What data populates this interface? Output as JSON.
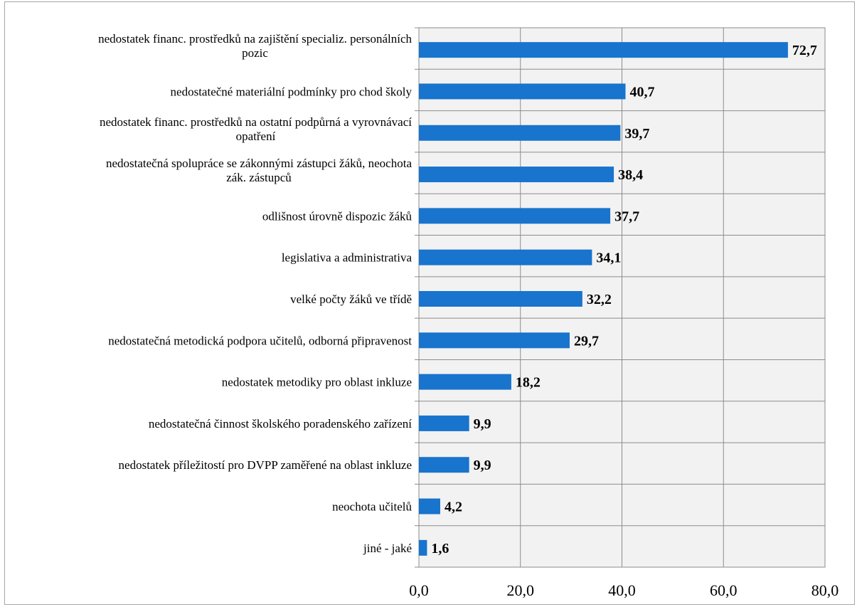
{
  "chart_data": {
    "type": "bar",
    "orientation": "horizontal",
    "categories": [
      "nedostatek financ. prostředků na zajištění specializ. personálních pozic",
      "nedostatečné materiální podmínky pro chod školy",
      "nedostatek financ. prostředků na ostatní podpůrná a vyrovnávací opatření",
      "nedostatečná spolupráce se zákonnými zástupci žáků, neochota zák. zástupců",
      "odlišnost úrovně dispozic žáků",
      "legislativa a administrativa",
      "velké počty žáků ve třídě",
      "nedostatečná metodická podpora učitelů, odborná připravenost",
      "nedostatek metodiky pro oblast inkluze",
      "nedostatečná činnost školského poradenského zařízení",
      "nedostatek příležitostí pro DVPP zaměřené na oblast inkluze",
      "neochota učitelů",
      "jiné - jaké"
    ],
    "category_lines": [
      [
        "nedostatek financ. prostředků na zajištění specializ. personálních",
        "pozic"
      ],
      [
        "nedostatečné materiální podmínky pro chod školy"
      ],
      [
        "nedostatek financ. prostředků na ostatní podpůrná a vyrovnávací",
        "opatření"
      ],
      [
        "nedostatečná spolupráce se zákonnými zástupci žáků, neochota",
        "zák. zástupců"
      ],
      [
        "odlišnost úrovně dispozic žáků"
      ],
      [
        "legislativa a administrativa"
      ],
      [
        "velké počty žáků ve třídě"
      ],
      [
        "nedostatečná metodická podpora učitelů, odborná připravenost"
      ],
      [
        "nedostatek metodiky pro oblast inkluze"
      ],
      [
        "nedostatečná činnost školského poradenského zařízení"
      ],
      [
        "nedostatek příležitostí pro DVPP zaměřené na oblast inkluze"
      ],
      [
        "neochota učitelů"
      ],
      [
        "jiné - jaké"
      ]
    ],
    "values": [
      72.7,
      40.7,
      39.7,
      38.4,
      37.7,
      34.1,
      32.2,
      29.7,
      18.2,
      9.9,
      9.9,
      4.2,
      1.6
    ],
    "value_labels": [
      "72,7",
      "40,7",
      "39,7",
      "38,4",
      "37,7",
      "34,1",
      "32,2",
      "29,7",
      "18,2",
      "9,9",
      "9,9",
      "4,2",
      "1,6"
    ],
    "xlim": [
      0,
      80
    ],
    "xticks": [
      0,
      20,
      40,
      60,
      80
    ],
    "xtick_labels": [
      "0,0",
      "20,0",
      "40,0",
      "60,0",
      "80,0"
    ],
    "title": "",
    "xlabel": "",
    "ylabel": "",
    "grid": true,
    "legend": "none",
    "bar_color": "#1874cd",
    "plot_background": "#f2f2f2",
    "grid_color": "#8c8c8c"
  }
}
